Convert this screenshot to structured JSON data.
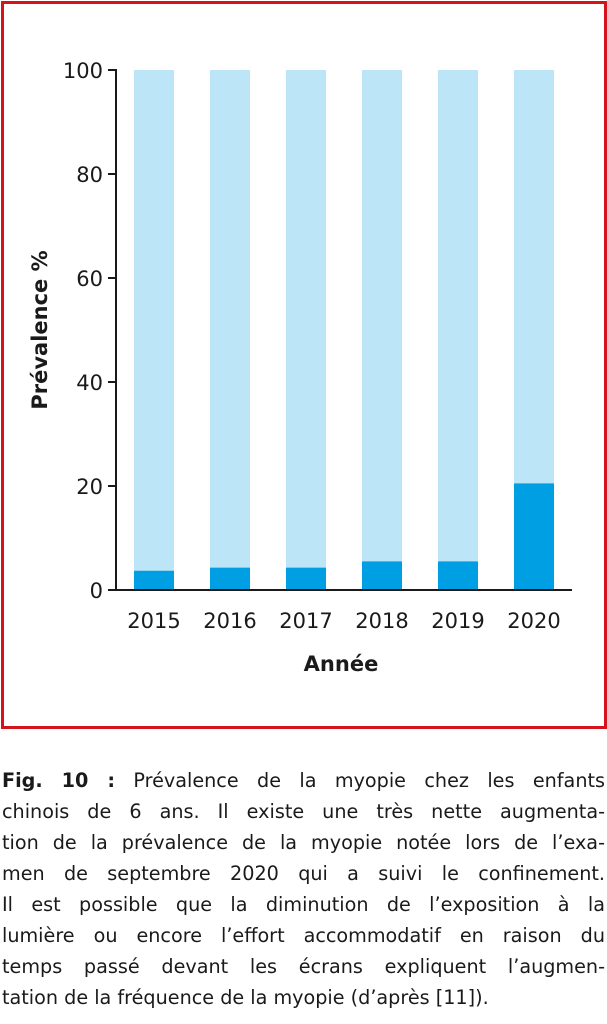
{
  "chart_data": {
    "type": "bar",
    "categories": [
      "2015",
      "2016",
      "2017",
      "2018",
      "2019",
      "2020"
    ],
    "series": [
      {
        "values": [
          3.7,
          4.3,
          4.3,
          5.5,
          5.5,
          20.5
        ]
      }
    ],
    "background_values": [
      100,
      100,
      100,
      100,
      100,
      100
    ],
    "xlabel": "Année",
    "ylabel": "Prévalence %",
    "ylim": [
      0,
      100
    ],
    "yticks": [
      0,
      20,
      40,
      60,
      80,
      100
    ],
    "grid": false,
    "colors": {
      "bar": "#009fe3",
      "bar_background": "#bde5f8",
      "frame": "#d3141c",
      "axis": "#1a1a1a"
    }
  },
  "caption": {
    "label": "Fig. 10 :",
    "lines": [
      " Prévalence de la myopie chez les enfants",
      "chinois de 6 ans. Il existe une très nette augmenta-",
      "tion de la prévalence de la myopie notée lors de l’exa-",
      "men de septembre 2020 qui a suivi le confinement.",
      "Il est possible que la diminution de l’exposition à la",
      "lumière ou encore l’effort accommodatif en raison du",
      "temps passé devant les écrans expliquent l’augmen-",
      "tation de la fréquence de la myopie (d’après [11])."
    ]
  }
}
